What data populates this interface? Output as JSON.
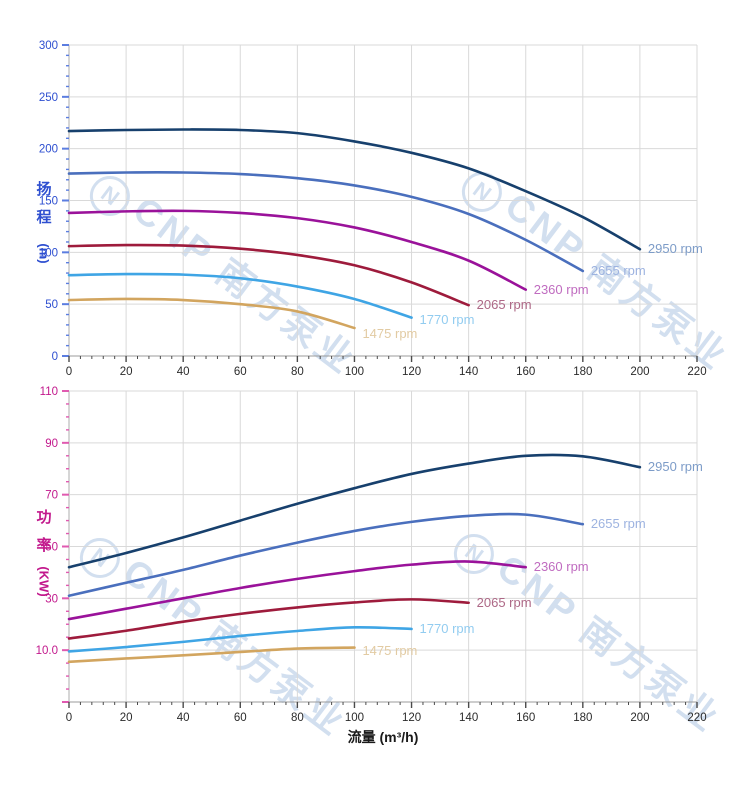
{
  "watermark": {
    "logo_letter": "N",
    "text": "CNP 南方泵业",
    "color": "rgba(183,204,229,0.62)"
  },
  "x_axis_title": "流量 (m³/h)",
  "chart_data": [
    {
      "type": "line",
      "id": "head",
      "ylabel_cn": "扬程",
      "ylabel_unit": "(m)",
      "axis_color": "#2e4fd0",
      "tick_color": "#5b7de0",
      "grid": true,
      "legend_position": "end-of-line",
      "ylim": [
        0,
        300
      ],
      "y_major": 50,
      "y_minor": 10,
      "y_tick_labels": [
        "300",
        "250",
        "200",
        "150",
        "100",
        "50",
        "0"
      ],
      "xlim": [
        0,
        220
      ],
      "x_major": 20,
      "x_minor": 4,
      "x_tick_labels": [
        "0",
        "20",
        "40",
        "60",
        "80",
        "100",
        "120",
        "140",
        "160",
        "180",
        "200",
        "220"
      ],
      "series": [
        {
          "name": "2950 rpm",
          "color": "#17406d",
          "label_color": "#7d9cc8",
          "x": [
            0,
            20,
            40,
            60,
            80,
            100,
            120,
            140,
            160,
            180,
            200
          ],
          "y": [
            217,
            218,
            218.5,
            218,
            215,
            207,
            196,
            181,
            159,
            134,
            103
          ]
        },
        {
          "name": "2655 rpm",
          "color": "#4a6fbd",
          "label_color": "#9db3e0",
          "x": [
            0,
            20,
            40,
            60,
            80,
            100,
            120,
            140,
            160,
            180
          ],
          "y": [
            176,
            177,
            177,
            175.5,
            171.5,
            164.5,
            153.5,
            137,
            112,
            82
          ]
        },
        {
          "name": "2360 rpm",
          "color": "#9a129a",
          "label_color": "#c06cc0",
          "x": [
            0,
            20,
            40,
            60,
            80,
            100,
            120,
            140,
            160
          ],
          "y": [
            138,
            139.5,
            140,
            138,
            133,
            124,
            110,
            92,
            64
          ]
        },
        {
          "name": "2065 rpm",
          "color": "#9e1b3c",
          "label_color": "#ad6886",
          "x": [
            0,
            20,
            40,
            60,
            80,
            100,
            120,
            140
          ],
          "y": [
            106,
            107,
            106.5,
            103.5,
            97.5,
            87.5,
            71,
            49
          ]
        },
        {
          "name": "1770 rpm",
          "color": "#3fa5e5",
          "label_color": "#92ccf0",
          "x": [
            0,
            20,
            40,
            60,
            80,
            100,
            120
          ],
          "y": [
            78,
            79,
            78.5,
            75,
            67,
            55,
            37
          ],
          "label_dy": 2
        },
        {
          "name": "1475 rpm",
          "color": "#d2a55f",
          "label_color": "#e2cba3",
          "x": [
            0,
            20,
            40,
            60,
            80,
            100
          ],
          "y": [
            54,
            55,
            54,
            50,
            43,
            27
          ],
          "label_dy": 6
        }
      ]
    },
    {
      "type": "line",
      "id": "power",
      "ylabel_cn": "功率",
      "ylabel_unit": "(KW)",
      "axis_color": "#c2188c",
      "tick_color": "#e05ab0",
      "grid": true,
      "legend_position": "end-of-line",
      "ylim": [
        -10,
        110
      ],
      "y_major": 20,
      "y_minor": 5,
      "y_tick_labels": [
        "110",
        "90",
        "70",
        "50",
        "30",
        "10.0"
      ],
      "xlim": [
        0,
        220
      ],
      "x_major": 20,
      "x_minor": 4,
      "x_tick_labels": [
        "0",
        "20",
        "40",
        "60",
        "80",
        "100",
        "120",
        "140",
        "160",
        "180",
        "200",
        "220"
      ],
      "xlabel": "流量 (m³/h)",
      "series": [
        {
          "name": "2950 rpm",
          "color": "#17406d",
          "label_color": "#7d9cc8",
          "x": [
            0,
            20,
            40,
            60,
            80,
            100,
            120,
            140,
            160,
            180,
            200
          ],
          "y": [
            42,
            47.5,
            53.5,
            60,
            66.5,
            72.5,
            78,
            82,
            85,
            84.8,
            80.6
          ]
        },
        {
          "name": "2655 rpm",
          "color": "#4a6fbd",
          "label_color": "#9db3e0",
          "x": [
            0,
            20,
            40,
            60,
            80,
            100,
            120,
            140,
            160,
            180
          ],
          "y": [
            31,
            36,
            41,
            46.5,
            51.5,
            56,
            59.5,
            61.8,
            62.3,
            58.6
          ]
        },
        {
          "name": "2360 rpm",
          "color": "#9a129a",
          "label_color": "#c06cc0",
          "x": [
            0,
            20,
            40,
            60,
            80,
            100,
            120,
            140,
            160
          ],
          "y": [
            22,
            26,
            30,
            34,
            37.5,
            40.5,
            43,
            44.2,
            42
          ]
        },
        {
          "name": "2065 rpm",
          "color": "#9e1b3c",
          "label_color": "#ad6886",
          "x": [
            0,
            20,
            40,
            60,
            80,
            100,
            120,
            140
          ],
          "y": [
            14.5,
            17.5,
            21,
            24,
            26.5,
            28.4,
            29.6,
            28.3
          ]
        },
        {
          "name": "1770 rpm",
          "color": "#3fa5e5",
          "label_color": "#92ccf0",
          "x": [
            0,
            20,
            40,
            60,
            80,
            100,
            120
          ],
          "y": [
            9.5,
            11.2,
            13.2,
            15.5,
            17.4,
            18.8,
            18.2
          ]
        },
        {
          "name": "1475 rpm",
          "color": "#d2a55f",
          "label_color": "#e2cba3",
          "x": [
            0,
            20,
            40,
            60,
            80,
            100
          ],
          "y": [
            5.5,
            6.8,
            8,
            9.3,
            10.6,
            11
          ],
          "label_dy": 3
        }
      ]
    }
  ]
}
